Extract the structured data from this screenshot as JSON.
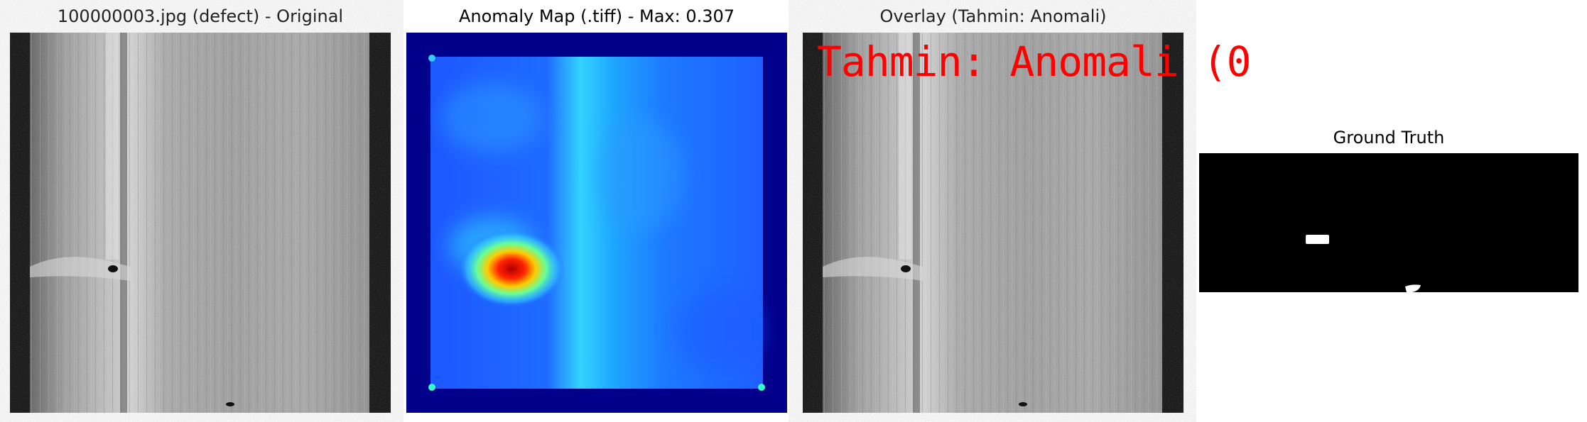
{
  "panels": {
    "original": {
      "title": "100000003.jpg (defect) - Original"
    },
    "anomaly_map": {
      "title": "Anomaly Map (.tiff) - Max: 0.307",
      "max_value": 0.307
    },
    "overlay": {
      "title": "Overlay (Tahmin: Anomali)",
      "image_text": "Tahmin: Anomali (0"
    },
    "ground_truth": {
      "title": "Ground Truth"
    }
  },
  "colors": {
    "overlay_text": "#ff0000",
    "mask_background": "#000000",
    "mask_foreground": "#ffffff",
    "heatmap_background": "#00008b"
  }
}
